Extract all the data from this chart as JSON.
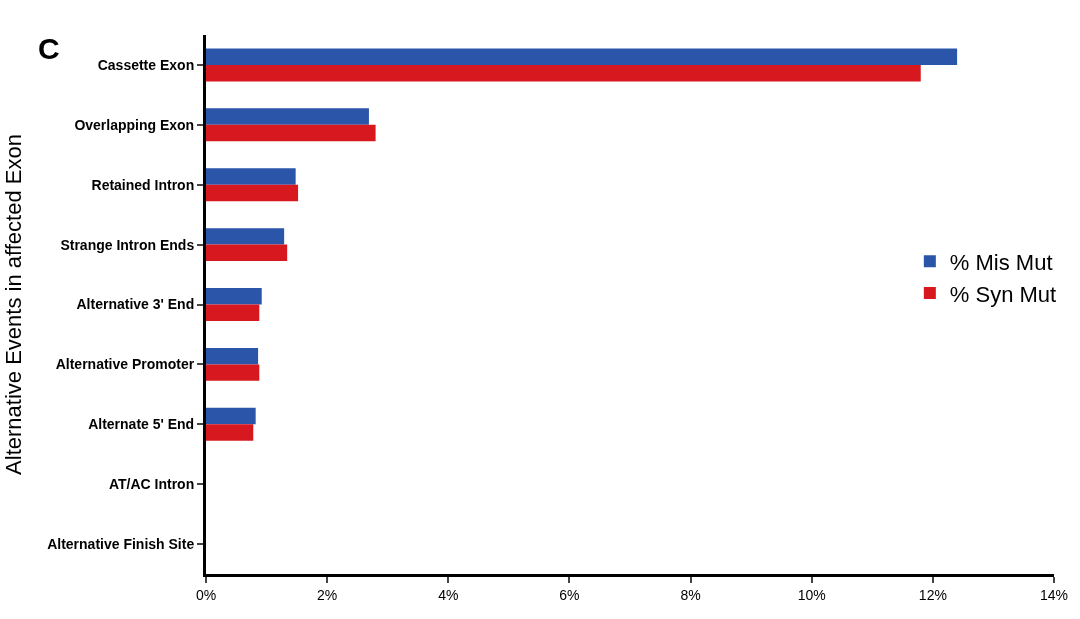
{
  "chart_data": {
    "type": "bar",
    "orientation": "horizontal",
    "ylabel": "Alternative Events in affected Exon",
    "annotations": [
      "C"
    ],
    "categories": [
      "Cassette Exon",
      "Overlapping Exon",
      "Retained Intron",
      "Strange Intron Ends",
      "Alternative 3' End",
      "Alternative Promoter",
      "Alternate 5' End",
      "AT/AC Intron",
      "Alternative Finish Site"
    ],
    "series": [
      {
        "name": "% Mis Mut",
        "color": "#2a55a8",
        "values": [
          12.4,
          2.69,
          1.48,
          1.29,
          0.92,
          0.86,
          0.82,
          0,
          0
        ]
      },
      {
        "name": "% Syn Mut",
        "color": "#d7191f",
        "values": [
          11.8,
          2.8,
          1.52,
          1.34,
          0.88,
          0.88,
          0.78,
          0,
          0
        ]
      }
    ],
    "xlim": [
      0,
      14
    ],
    "xticks": [
      {
        "value": 0,
        "label": "0%"
      },
      {
        "value": 2,
        "label": "2%"
      },
      {
        "value": 4,
        "label": "4%"
      },
      {
        "value": 6,
        "label": "6%"
      },
      {
        "value": 8,
        "label": "8%"
      },
      {
        "value": 10,
        "label": "10%"
      },
      {
        "value": 12,
        "label": "12%"
      },
      {
        "value": 14,
        "label": "14%"
      }
    ],
    "legend": "right"
  }
}
